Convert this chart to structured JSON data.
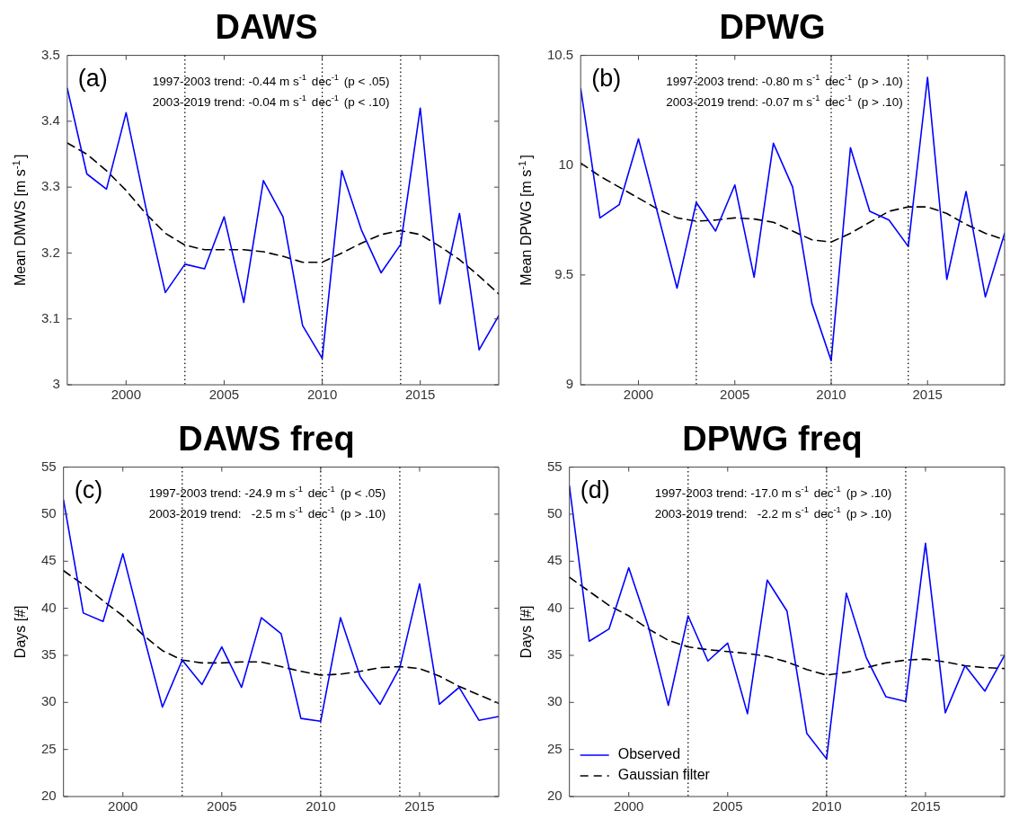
{
  "chart_data": [
    {
      "type": "line",
      "title": "DAWS",
      "ylabel": "Mean DMWS [m s$^{-1}$]",
      "x": [
        1997,
        1998,
        1999,
        2000,
        2001,
        2002,
        2003,
        2004,
        2005,
        2006,
        2007,
        2008,
        2009,
        2010,
        2011,
        2012,
        2013,
        2014,
        2015,
        2016,
        2017,
        2018,
        2019
      ],
      "xlim": [
        1997,
        2019
      ],
      "xticks": [
        2000,
        2005,
        2010,
        2015
      ],
      "ylim": [
        3,
        3.5
      ],
      "yticks": [
        3,
        3.1,
        3.2,
        3.3,
        3.4,
        3.5
      ],
      "series": [
        {
          "color": "#0000ff",
          "line_style": "solid",
          "values": [
            3.45,
            3.32,
            3.297,
            3.413,
            3.27,
            3.14,
            3.183,
            3.176,
            3.255,
            3.125,
            3.31,
            3.255,
            3.09,
            3.04,
            3.325,
            3.235,
            3.17,
            3.213,
            3.42,
            3.123,
            3.26,
            3.053,
            3.105
          ]
        },
        {
          "color": "#000000",
          "line_style": "dashed",
          "values": [
            3.367,
            3.35,
            3.325,
            3.295,
            3.26,
            3.23,
            3.212,
            3.205,
            3.205,
            3.205,
            3.202,
            3.195,
            3.186,
            3.186,
            3.2,
            3.215,
            3.228,
            3.234,
            3.228,
            3.21,
            3.19,
            3.165,
            3.138
          ]
        }
      ],
      "ref_lines": [
        {
          "axis": "x",
          "value": 2003,
          "color": "#000000",
          "line_style": "dotted"
        },
        {
          "axis": "x",
          "value": 2010,
          "color": "#000000",
          "line_style": "dotted"
        },
        {
          "axis": "x",
          "value": 2014,
          "color": "#000000",
          "line_style": "dotted"
        }
      ],
      "annotations": [
        "(a)",
        "1997-2003 trend: -0.44 m s$^{-1}$ dec$^{-1}$ (p < .05)",
        "2003-2019 trend: -0.04 m s$^{-1}$ dec$^{-1}$ (p < .10)"
      ]
    },
    {
      "type": "line",
      "title": "DPWG",
      "ylabel": "Mean DPWG [m s$^{-1}$]",
      "x": [
        1997,
        1998,
        1999,
        2000,
        2001,
        2002,
        2003,
        2004,
        2005,
        2006,
        2007,
        2008,
        2009,
        2010,
        2011,
        2012,
        2013,
        2014,
        2015,
        2016,
        2017,
        2018,
        2019
      ],
      "xlim": [
        1997,
        2019
      ],
      "xticks": [
        2000,
        2005,
        2010,
        2015
      ],
      "ylim": [
        9,
        10.5
      ],
      "yticks": [
        9,
        9.5,
        10,
        10.5
      ],
      "series": [
        {
          "color": "#0000ff",
          "line_style": "solid",
          "values": [
            10.35,
            9.76,
            9.82,
            10.12,
            9.78,
            9.44,
            9.83,
            9.7,
            9.91,
            9.49,
            10.1,
            9.9,
            9.37,
            9.11,
            10.08,
            9.79,
            9.75,
            9.63,
            10.4,
            9.48,
            9.88,
            9.4,
            9.69
          ]
        },
        {
          "color": "#000000",
          "line_style": "dashed",
          "values": [
            10.01,
            9.95,
            9.9,
            9.85,
            9.8,
            9.76,
            9.745,
            9.75,
            9.76,
            9.755,
            9.74,
            9.7,
            9.66,
            9.65,
            9.69,
            9.74,
            9.79,
            9.81,
            9.81,
            9.78,
            9.73,
            9.69,
            9.66
          ]
        }
      ],
      "ref_lines": [
        {
          "axis": "x",
          "value": 2003,
          "color": "#000000",
          "line_style": "dotted"
        },
        {
          "axis": "x",
          "value": 2010,
          "color": "#000000",
          "line_style": "dotted"
        },
        {
          "axis": "x",
          "value": 2014,
          "color": "#000000",
          "line_style": "dotted"
        }
      ],
      "annotations": [
        "(b)",
        "1997-2003 trend: -0.80 m s$^{-1}$ dec$^{-1}$ (p > .10)",
        "2003-2019 trend: -0.07 m s$^{-1}$ dec$^{-1}$ (p > .10)"
      ]
    },
    {
      "type": "line",
      "title": "DAWS freq",
      "ylabel": "Days [#]",
      "x": [
        1997,
        1998,
        1999,
        2000,
        2001,
        2002,
        2003,
        2004,
        2005,
        2006,
        2007,
        2008,
        2009,
        2010,
        2011,
        2012,
        2013,
        2014,
        2015,
        2016,
        2017,
        2018,
        2019
      ],
      "xlim": [
        1997,
        2019
      ],
      "xticks": [
        2000,
        2005,
        2010,
        2015
      ],
      "ylim": [
        20,
        55
      ],
      "yticks": [
        20,
        25,
        30,
        35,
        40,
        45,
        50,
        55
      ],
      "series": [
        {
          "color": "#0000ff",
          "line_style": "solid",
          "values": [
            51.5,
            39.5,
            38.6,
            45.8,
            37.5,
            29.5,
            34.5,
            31.9,
            35.9,
            31.6,
            39,
            37.3,
            28.3,
            28,
            39,
            32.7,
            29.8,
            33.7,
            42.6,
            29.8,
            31.6,
            28.1,
            28.5
          ]
        },
        {
          "color": "#000000",
          "line_style": "dashed",
          "values": [
            44,
            42.5,
            40.8,
            39.2,
            37.2,
            35.5,
            34.5,
            34.2,
            34.2,
            34.3,
            34.3,
            33.8,
            33.3,
            32.9,
            33,
            33.3,
            33.7,
            33.8,
            33.6,
            32.8,
            31.7,
            30.8,
            29.9
          ]
        }
      ],
      "ref_lines": [
        {
          "axis": "x",
          "value": 2003,
          "color": "#000000",
          "line_style": "dotted"
        },
        {
          "axis": "x",
          "value": 2010,
          "color": "#000000",
          "line_style": "dotted"
        },
        {
          "axis": "x",
          "value": 2014,
          "color": "#000000",
          "line_style": "dotted"
        }
      ],
      "annotations": [
        "(c)",
        "1997-2003 trend: -24.9 m s$^{-1}$ dec$^{-1}$ (p < .05)",
        "2003-2019 trend:   -2.5 m s$^{-1}$ dec$^{-1}$ (p > .10)"
      ]
    },
    {
      "type": "line",
      "title": "DPWG freq",
      "ylabel": "Days [#]",
      "x": [
        1997,
        1998,
        1999,
        2000,
        2001,
        2002,
        2003,
        2004,
        2005,
        2006,
        2007,
        2008,
        2009,
        2010,
        2011,
        2012,
        2013,
        2014,
        2015,
        2016,
        2017,
        2018,
        2019
      ],
      "xlim": [
        1997,
        2019
      ],
      "xticks": [
        2000,
        2005,
        2010,
        2015
      ],
      "ylim": [
        20,
        55
      ],
      "yticks": [
        20,
        25,
        30,
        35,
        40,
        45,
        50,
        55
      ],
      "legend": "bottom left",
      "series": [
        {
          "name": "Observed",
          "color": "#0000ff",
          "line_style": "solid",
          "values": [
            53,
            36.5,
            37.8,
            44.3,
            38,
            29.7,
            39.2,
            34.4,
            36.3,
            28.8,
            43,
            39.7,
            26.7,
            24,
            41.6,
            34.8,
            30.6,
            30.1,
            46.9,
            28.9,
            33.9,
            31.2,
            35
          ]
        },
        {
          "name": "Gaussian filter",
          "color": "#000000",
          "line_style": "dashed",
          "values": [
            43.3,
            41.8,
            40.3,
            39.2,
            37.8,
            36.6,
            35.9,
            35.6,
            35.4,
            35.2,
            34.9,
            34.3,
            33.5,
            32.9,
            33.2,
            33.7,
            34.2,
            34.5,
            34.6,
            34.3,
            33.9,
            33.7,
            33.6
          ]
        }
      ],
      "ref_lines": [
        {
          "axis": "x",
          "value": 2003,
          "color": "#000000",
          "line_style": "dotted"
        },
        {
          "axis": "x",
          "value": 2010,
          "color": "#000000",
          "line_style": "dotted"
        },
        {
          "axis": "x",
          "value": 2014,
          "color": "#000000",
          "line_style": "dotted"
        }
      ],
      "annotations": [
        "(d)",
        "1997-2003 trend: -17.0 m s$^{-1}$ dec$^{-1}$ (p > .10)",
        "2003-2019 trend:   -2.2 m s$^{-1}$ dec$^{-1}$ (p > .10)"
      ]
    }
  ]
}
